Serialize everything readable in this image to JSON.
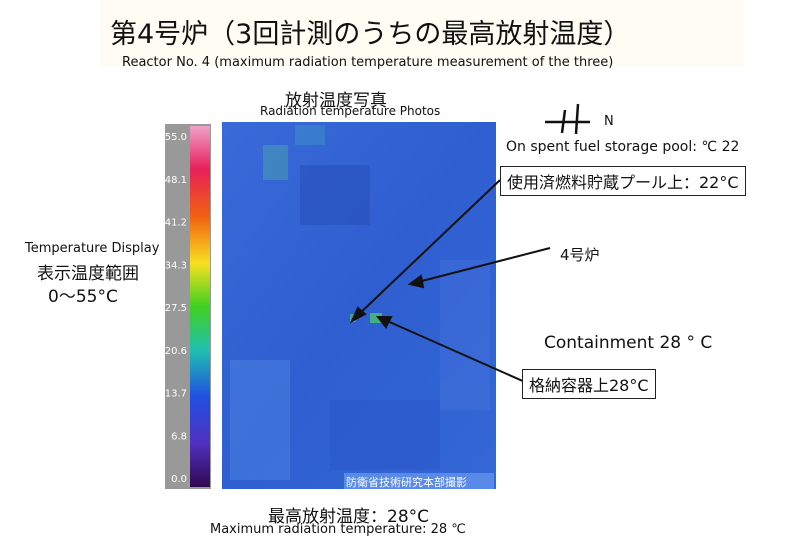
{
  "header": {
    "title": "第4号炉（3回計測のうちの最高放射温度）",
    "title_en": "Reactor No. 4 (maximum radiation temperature measurement of the three)"
  },
  "photo": {
    "title": "放射温度写真",
    "title_en": "Radiation temperature Photos",
    "watermark": "防衛省技術研究本部撮影"
  },
  "compass": {
    "label": "N"
  },
  "scale": {
    "labels": [
      "55.0",
      "48.1",
      "41.2",
      "34.3",
      "27.5",
      "20.6",
      "13.7",
      "6.8",
      "0.0"
    ],
    "caption_en": "Temperature Display",
    "caption": "表示温度範囲",
    "range": "0〜55°C"
  },
  "callouts": {
    "pool_en": "On spent fuel storage pool: ℃ 22",
    "pool": "使用済燃料貯蔵プール上：22°C",
    "reactor": "4号炉",
    "containment_en": "Containment 28 ° C",
    "containment": "格納容器上28°C"
  },
  "footer": {
    "max": "最高放射温度：28°C",
    "max_en": "Maximum radiation temperature: 28 ℃"
  }
}
